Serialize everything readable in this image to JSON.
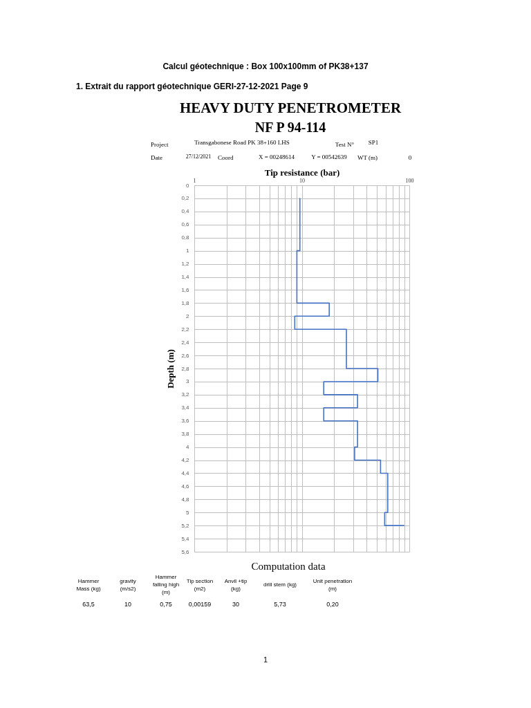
{
  "chart_data": {
    "type": "line",
    "title": "HEAVY DUTY PENETROMETER",
    "subtitle": "NF P 94-114",
    "xlabel": "Tip resistance (bar)",
    "ylabel": "Depth (m)",
    "log": "x",
    "grid": true,
    "xlim": [
      1,
      100
    ],
    "xticks": [
      1,
      {
        "value": 2,
        "label": null
      },
      {
        "value": 3,
        "label": null
      },
      {
        "value": 4,
        "label": null
      },
      {
        "value": 5,
        "label": null
      },
      {
        "value": 6,
        "label": null
      },
      {
        "value": 7,
        "label": null
      },
      {
        "value": 8,
        "label": null
      },
      {
        "value": 9,
        "label": null
      },
      10,
      {
        "value": 20,
        "label": null
      },
      {
        "value": 30,
        "label": null
      },
      {
        "value": 40,
        "label": null
      },
      {
        "value": 50,
        "label": null
      },
      {
        "value": 60,
        "label": null
      },
      {
        "value": 70,
        "label": null
      },
      {
        "value": 80,
        "label": null
      },
      {
        "value": 90,
        "label": null
      },
      100
    ],
    "ylim": [
      5.6,
      0
    ],
    "yticks": [
      0,
      {
        "value": 0.2,
        "label": "0,2"
      },
      {
        "value": 0.4,
        "label": "0,4"
      },
      {
        "value": 0.6,
        "label": "0,6"
      },
      {
        "value": 0.8,
        "label": "0,8"
      },
      1,
      {
        "value": 1.2,
        "label": "1,2"
      },
      {
        "value": 1.4,
        "label": "1,4"
      },
      {
        "value": 1.6,
        "label": "1,6"
      },
      {
        "value": 1.8,
        "label": "1,8"
      },
      2,
      {
        "value": 2.2,
        "label": "2,2"
      },
      {
        "value": 2.4,
        "label": "2,4"
      },
      {
        "value": 2.6,
        "label": "2,6"
      },
      {
        "value": 2.8,
        "label": "2,8"
      },
      3,
      {
        "value": 3.2,
        "label": "3,2"
      },
      {
        "value": 3.4,
        "label": "3,4"
      },
      {
        "value": 3.6,
        "label": "3,6"
      },
      {
        "value": 3.8,
        "label": "3,8"
      },
      4,
      {
        "value": 4.2,
        "label": "4,2"
      },
      {
        "value": 4.4,
        "label": "4,4"
      },
      {
        "value": 4.6,
        "label": "4,6"
      },
      {
        "value": 4.8,
        "label": "4,8"
      },
      5,
      {
        "value": 5.2,
        "label": "5,2"
      },
      {
        "value": 5.4,
        "label": "5,4"
      },
      {
        "value": 5.6,
        "label": "5,6"
      }
    ],
    "series": [
      {
        "color": "#4472c4",
        "x": [
          9.6,
          9.6,
          9.0,
          9.0,
          18,
          18,
          8.6,
          8.6,
          26,
          26,
          51,
          51,
          16,
          16,
          33,
          33,
          16,
          16,
          33,
          33,
          31,
          31,
          54,
          54,
          63,
          63,
          59,
          59,
          89
        ],
        "values": [
          0.2,
          1.0,
          1.0,
          1.8,
          1.8,
          2.0,
          2.0,
          2.2,
          2.2,
          2.8,
          2.8,
          3.0,
          3.0,
          3.2,
          3.2,
          3.4,
          3.4,
          3.6,
          3.6,
          4.0,
          4.0,
          4.2,
          4.2,
          4.4,
          4.4,
          5.0,
          5.0,
          5.2,
          5.2
        ]
      }
    ],
    "annotations": [
      "Calcul géotechnique : Box 100x100mm of PK38+137",
      "1.  Extrait du rapport géotechnique GERI-27-12-2021 Page 9",
      "Project",
      "Transgabonese Road PK 38+160 LHS",
      "Test N°",
      "SP1",
      "Date",
      "27/12/2021",
      "Coord",
      "X = 00248614",
      "Y = 00542639",
      "WT (m)",
      "0",
      "Computation data",
      "Hammer\nMass (kg)",
      "gravity\n(m/s2)",
      "Hammer\nfalling high\n(m)",
      "Tip section\n(m2)",
      "Anvil +tip\n(kg)",
      "drill stem (kg)",
      "Unit penetration\n(m)",
      "63,5",
      "10",
      "0,75",
      "0,00159",
      "30",
      "5,73",
      "0,20",
      "1"
    ]
  }
}
